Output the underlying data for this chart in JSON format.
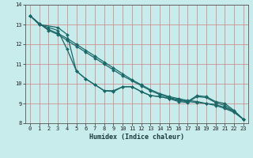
{
  "xlabel": "Humidex (Indice chaleur)",
  "bg_color": "#c8ecec",
  "grid_color": "#d08080",
  "line_color": "#1a6868",
  "xlim": [
    -0.5,
    23.5
  ],
  "ylim": [
    8,
    14
  ],
  "xticks": [
    0,
    1,
    2,
    3,
    4,
    5,
    6,
    7,
    8,
    9,
    10,
    11,
    12,
    13,
    14,
    15,
    16,
    17,
    18,
    19,
    20,
    21,
    22,
    23
  ],
  "yticks": [
    8,
    9,
    10,
    11,
    12,
    13,
    14
  ],
  "curve1_x": [
    0,
    1,
    2,
    3,
    4,
    5,
    6,
    7,
    8,
    9,
    10,
    11,
    12,
    13,
    14,
    15,
    16,
    17,
    18,
    19,
    20,
    21,
    22,
    23
  ],
  "curve1_y": [
    13.45,
    13.05,
    12.7,
    12.5,
    12.2,
    11.9,
    11.6,
    11.3,
    11.0,
    10.7,
    10.4,
    10.15,
    9.9,
    9.65,
    9.45,
    9.3,
    9.2,
    9.1,
    9.05,
    9.0,
    8.9,
    8.75,
    8.55,
    8.2
  ],
  "curve2_x": [
    0,
    1,
    2,
    3,
    4,
    5,
    6,
    7,
    8,
    9,
    10,
    11,
    12,
    13,
    14,
    15,
    16,
    17,
    18,
    19,
    20,
    21,
    22,
    23
  ],
  "curve2_y": [
    13.45,
    13.05,
    12.75,
    12.55,
    12.3,
    12.0,
    11.7,
    11.4,
    11.1,
    10.8,
    10.5,
    10.2,
    9.95,
    9.7,
    9.5,
    9.35,
    9.25,
    9.15,
    9.1,
    9.0,
    8.95,
    8.8,
    8.6,
    8.2
  ],
  "curve3_x": [
    0,
    1,
    2,
    3,
    4,
    5,
    6,
    7,
    8,
    9,
    10,
    11,
    12,
    13,
    14,
    15,
    16,
    17,
    18,
    19,
    20,
    21,
    22,
    23
  ],
  "curve3_y": [
    13.45,
    13.0,
    12.85,
    12.7,
    11.75,
    10.65,
    10.25,
    9.95,
    9.65,
    9.65,
    9.85,
    9.85,
    9.6,
    9.4,
    9.35,
    9.25,
    9.15,
    9.1,
    9.4,
    9.35,
    9.1,
    9.0,
    8.65,
    8.2
  ],
  "curve4_x": [
    0,
    1,
    3,
    4,
    5,
    6,
    7,
    8,
    9,
    10,
    11,
    12,
    13,
    14,
    15,
    16,
    17,
    18,
    19,
    20,
    21,
    22,
    23
  ],
  "curve4_y": [
    13.45,
    13.0,
    12.85,
    12.5,
    10.65,
    10.25,
    9.95,
    9.65,
    9.6,
    9.85,
    9.85,
    9.6,
    9.4,
    9.35,
    9.25,
    9.1,
    9.05,
    9.35,
    9.3,
    9.05,
    8.9,
    8.6,
    8.2
  ],
  "marker_size": 2.0,
  "linewidth": 0.9,
  "xlabel_fontsize": 6.0,
  "tick_fontsize": 5.0
}
